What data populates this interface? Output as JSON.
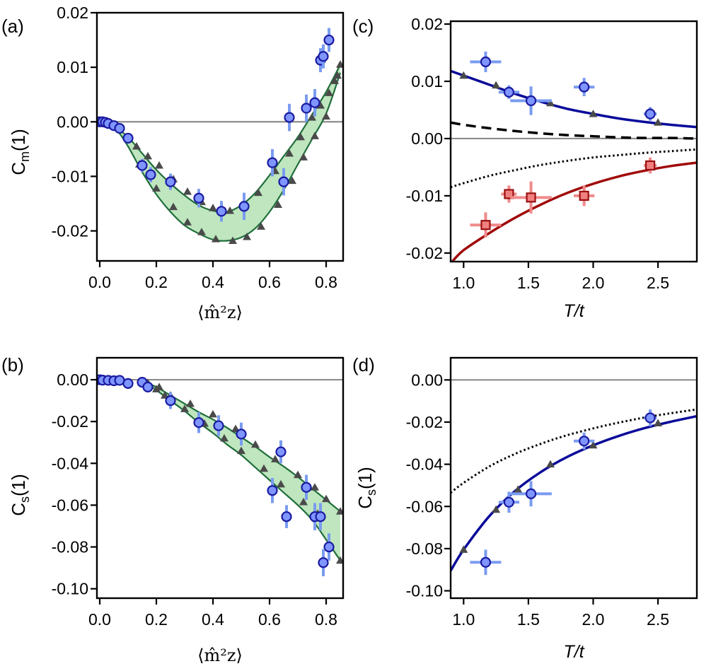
{
  "colors": {
    "frame": "#000000",
    "zero_line": "#8c8c8c",
    "band_fill": "#bfe6bf",
    "band_line": "#1f6e3a",
    "triangle": "#4a4a4a",
    "blue_point_fill": "#7f95ff",
    "blue_point_edge": "#1a1aa0",
    "blue_error": "#7a9cf0",
    "red_point_fill": "#f08080",
    "red_point_edge": "#9a1010",
    "red_error": "#f08a8a",
    "blue_curve": "#0a0a9a",
    "red_curve": "#a00a0a",
    "dashed_curve": "#000000",
    "dotted_curve": "#000000"
  },
  "chart_data": [
    {
      "id": "a",
      "type": "scatter",
      "panel_label": "(a)",
      "ylabel_main": "C",
      "ylabel_sub": "m",
      "ylabel_tail": "(1)",
      "xlabel_math": "⟨m̂²z⟩",
      "xlim": [
        -0.01,
        0.86
      ],
      "ylim": [
        -0.0255,
        0.02
      ],
      "xticks": [
        0.0,
        0.2,
        0.4,
        0.6,
        0.8
      ],
      "xtick_labels": [
        "0.0",
        "0.2",
        "0.4",
        "0.6",
        "0.8"
      ],
      "yticks": [
        0.02,
        0.01,
        0.0,
        -0.01,
        -0.02
      ],
      "ytick_labels": [
        "0.02",
        "0.01",
        "0.00",
        "-0.01",
        "-0.02"
      ],
      "band_upper": [
        [
          0.0,
          0.0
        ],
        [
          0.03,
          -0.0005
        ],
        [
          0.06,
          -0.0012
        ],
        [
          0.1,
          -0.0028
        ],
        [
          0.15,
          -0.0058
        ],
        [
          0.2,
          -0.0088
        ],
        [
          0.25,
          -0.0113
        ],
        [
          0.3,
          -0.0135
        ],
        [
          0.35,
          -0.0153
        ],
        [
          0.4,
          -0.0163
        ],
        [
          0.45,
          -0.0165
        ],
        [
          0.5,
          -0.0153
        ],
        [
          0.55,
          -0.013
        ],
        [
          0.6,
          -0.0098
        ],
        [
          0.65,
          -0.0063
        ],
        [
          0.7,
          -0.0028
        ],
        [
          0.75,
          0.0013
        ],
        [
          0.8,
          0.0055
        ],
        [
          0.85,
          0.0105
        ]
      ],
      "band_lower": [
        [
          0.0,
          0.0
        ],
        [
          0.03,
          -0.0006
        ],
        [
          0.06,
          -0.0015
        ],
        [
          0.1,
          -0.0045
        ],
        [
          0.15,
          -0.0092
        ],
        [
          0.2,
          -0.0133
        ],
        [
          0.25,
          -0.0165
        ],
        [
          0.3,
          -0.019
        ],
        [
          0.35,
          -0.0205
        ],
        [
          0.4,
          -0.0216
        ],
        [
          0.45,
          -0.0218
        ],
        [
          0.5,
          -0.0212
        ],
        [
          0.55,
          -0.0195
        ],
        [
          0.6,
          -0.0165
        ],
        [
          0.65,
          -0.0125
        ],
        [
          0.7,
          -0.0078
        ],
        [
          0.75,
          -0.0032
        ],
        [
          0.8,
          0.0015
        ],
        [
          0.85,
          0.009
        ]
      ],
      "triangles": [
        [
          0.13,
          -0.0045
        ],
        [
          0.17,
          -0.0063
        ],
        [
          0.21,
          -0.008
        ],
        [
          0.26,
          -0.0105
        ],
        [
          0.31,
          -0.0128
        ],
        [
          0.36,
          -0.0147
        ],
        [
          0.4,
          -0.0158
        ],
        [
          0.46,
          -0.0163
        ],
        [
          0.56,
          -0.013
        ],
        [
          0.62,
          -0.009
        ],
        [
          0.67,
          -0.0058
        ],
        [
          0.71,
          -0.0028
        ],
        [
          0.75,
          0.0008
        ],
        [
          0.78,
          0.003
        ],
        [
          0.81,
          0.0053
        ],
        [
          0.83,
          0.0075
        ],
        [
          0.85,
          0.0105
        ],
        [
          0.14,
          -0.0078
        ],
        [
          0.2,
          -0.0122
        ],
        [
          0.26,
          -0.0156
        ],
        [
          0.31,
          -0.0184
        ],
        [
          0.36,
          -0.0202
        ],
        [
          0.41,
          -0.0215
        ],
        [
          0.47,
          -0.0218
        ],
        [
          0.52,
          -0.0211
        ],
        [
          0.57,
          -0.0192
        ],
        [
          0.63,
          -0.0152
        ],
        [
          0.68,
          -0.0108
        ],
        [
          0.72,
          -0.0065
        ],
        [
          0.76,
          -0.0026
        ],
        [
          0.8,
          0.001
        ],
        [
          0.84,
          0.0085
        ]
      ],
      "points": [
        [
          0.0,
          0.0,
          0.0004
        ],
        [
          0.01,
          0.0,
          0.0004
        ],
        [
          0.02,
          -0.0001,
          0.0004
        ],
        [
          0.03,
          -0.0003,
          0.0005
        ],
        [
          0.05,
          -0.0007,
          0.0005
        ],
        [
          0.07,
          -0.0012,
          0.0006
        ],
        [
          0.1,
          -0.003,
          0.0008
        ],
        [
          0.15,
          -0.008,
          0.0012
        ],
        [
          0.18,
          -0.0097,
          0.0014
        ],
        [
          0.25,
          -0.011,
          0.0015
        ],
        [
          0.35,
          -0.014,
          0.0017
        ],
        [
          0.43,
          -0.0164,
          0.0019
        ],
        [
          0.51,
          -0.0155,
          0.0025
        ],
        [
          0.61,
          -0.0075,
          0.0025
        ],
        [
          0.65,
          -0.011,
          0.0025
        ],
        [
          0.67,
          0.0008,
          0.0025
        ],
        [
          0.73,
          0.0025,
          0.0025
        ],
        [
          0.76,
          0.0035,
          0.0025
        ],
        [
          0.78,
          0.0113,
          0.0022
        ],
        [
          0.79,
          0.012,
          0.0022
        ],
        [
          0.81,
          0.015,
          0.0022
        ]
      ]
    },
    {
      "id": "b",
      "type": "scatter",
      "panel_label": "(b)",
      "ylabel_main": "C",
      "ylabel_sub": "s",
      "ylabel_tail": "(1)",
      "xlabel_math": "⟨m̂²z⟩",
      "xlim": [
        -0.01,
        0.86
      ],
      "ylim": [
        -0.1045,
        0.0105
      ],
      "xticks": [
        0.0,
        0.2,
        0.4,
        0.6,
        0.8
      ],
      "xtick_labels": [
        "0.0",
        "0.2",
        "0.4",
        "0.6",
        "0.8"
      ],
      "yticks": [
        0.0,
        -0.02,
        -0.04,
        -0.06,
        -0.08,
        -0.1
      ],
      "ytick_labels": [
        "0.00",
        "-0.02",
        "-0.04",
        "-0.06",
        "-0.08",
        "-0.10"
      ],
      "band_upper": [
        [
          0.15,
          -0.0005
        ],
        [
          0.2,
          -0.0035
        ],
        [
          0.25,
          -0.0075
        ],
        [
          0.3,
          -0.0115
        ],
        [
          0.35,
          -0.0155
        ],
        [
          0.4,
          -0.019
        ],
        [
          0.45,
          -0.023
        ],
        [
          0.5,
          -0.0275
        ],
        [
          0.55,
          -0.032
        ],
        [
          0.6,
          -0.037
        ],
        [
          0.65,
          -0.0415
        ],
        [
          0.7,
          -0.0465
        ],
        [
          0.75,
          -0.052
        ],
        [
          0.8,
          -0.0575
        ],
        [
          0.85,
          -0.063
        ]
      ],
      "band_lower": [
        [
          0.15,
          -0.0005
        ],
        [
          0.2,
          -0.005
        ],
        [
          0.25,
          -0.01
        ],
        [
          0.3,
          -0.015
        ],
        [
          0.35,
          -0.0205
        ],
        [
          0.4,
          -0.0255
        ],
        [
          0.45,
          -0.031
        ],
        [
          0.5,
          -0.036
        ],
        [
          0.55,
          -0.042
        ],
        [
          0.6,
          -0.048
        ],
        [
          0.65,
          -0.054
        ],
        [
          0.7,
          -0.06
        ],
        [
          0.75,
          -0.067
        ],
        [
          0.8,
          -0.0765
        ],
        [
          0.85,
          -0.0865
        ]
      ],
      "triangles": [
        [
          0.17,
          -0.0015
        ],
        [
          0.21,
          -0.0035
        ],
        [
          0.25,
          -0.0075
        ],
        [
          0.32,
          -0.0115
        ],
        [
          0.4,
          -0.0165
        ],
        [
          0.48,
          -0.0235
        ],
        [
          0.55,
          -0.031
        ],
        [
          0.62,
          -0.038
        ],
        [
          0.7,
          -0.0455
        ],
        [
          0.76,
          -0.0515
        ],
        [
          0.8,
          -0.057
        ],
        [
          0.85,
          -0.063
        ],
        [
          0.2,
          -0.0045
        ],
        [
          0.23,
          -0.0075
        ],
        [
          0.3,
          -0.014
        ],
        [
          0.37,
          -0.021
        ],
        [
          0.44,
          -0.028
        ],
        [
          0.5,
          -0.034
        ],
        [
          0.58,
          -0.0425
        ],
        [
          0.64,
          -0.05
        ],
        [
          0.72,
          -0.0585
        ],
        [
          0.77,
          -0.064
        ],
        [
          0.81,
          -0.078
        ],
        [
          0.85,
          -0.0865
        ]
      ],
      "points": [
        [
          0.0,
          0.0,
          0.0015
        ],
        [
          0.01,
          -0.0002,
          0.0015
        ],
        [
          0.03,
          -0.0003,
          0.0015
        ],
        [
          0.05,
          -0.0005,
          0.0015
        ],
        [
          0.07,
          -0.0003,
          0.0015
        ],
        [
          0.1,
          -0.0018,
          0.002
        ],
        [
          0.15,
          -0.0012,
          0.002
        ],
        [
          0.17,
          -0.0035,
          0.0025
        ],
        [
          0.25,
          -0.01,
          0.004
        ],
        [
          0.35,
          -0.0205,
          0.005
        ],
        [
          0.42,
          -0.022,
          0.005
        ],
        [
          0.5,
          -0.026,
          0.0055
        ],
        [
          0.61,
          -0.053,
          0.006
        ],
        [
          0.64,
          -0.0345,
          0.0055
        ],
        [
          0.66,
          -0.0655,
          0.0055
        ],
        [
          0.73,
          -0.0515,
          0.006
        ],
        [
          0.76,
          -0.0655,
          0.0065
        ],
        [
          0.78,
          -0.0655,
          0.0065
        ],
        [
          0.81,
          -0.08,
          0.0065
        ],
        [
          0.79,
          -0.0875,
          0.0065
        ]
      ]
    },
    {
      "id": "c",
      "type": "scatter",
      "panel_label": "(c)",
      "xlabel": "T/t",
      "xlim": [
        0.9,
        2.8
      ],
      "ylim": [
        -0.0215,
        0.0205
      ],
      "xticks": [
        1.0,
        1.5,
        2.0,
        2.5
      ],
      "xtick_labels": [
        "1.0",
        "1.5",
        "2.0",
        "2.5"
      ],
      "yticks": [
        0.02,
        0.01,
        0.0,
        -0.01,
        -0.02
      ],
      "ytick_labels": [
        "0.02",
        "0.01",
        "0.00",
        "-0.01",
        "-0.02"
      ],
      "blue_curve": [
        [
          0.9,
          0.0118
        ],
        [
          1.0,
          0.011
        ],
        [
          1.2,
          0.0094
        ],
        [
          1.4,
          0.0078
        ],
        [
          1.6,
          0.0064
        ],
        [
          1.8,
          0.0052
        ],
        [
          2.0,
          0.0043
        ],
        [
          2.2,
          0.0035
        ],
        [
          2.4,
          0.0029
        ],
        [
          2.6,
          0.0024
        ],
        [
          2.8,
          0.002
        ]
      ],
      "dashed_curve": [
        [
          0.9,
          0.0028
        ],
        [
          1.0,
          0.0024
        ],
        [
          1.2,
          0.0018
        ],
        [
          1.4,
          0.0013
        ],
        [
          1.6,
          0.0009
        ],
        [
          1.8,
          0.0006
        ],
        [
          2.0,
          0.0004
        ],
        [
          2.2,
          0.0002
        ],
        [
          2.4,
          0.0001
        ],
        [
          2.6,
          0.0001
        ],
        [
          2.8,
          0.0
        ]
      ],
      "dotted_curve": [
        [
          0.9,
          -0.0085
        ],
        [
          1.0,
          -0.0078
        ],
        [
          1.2,
          -0.0065
        ],
        [
          1.4,
          -0.0055
        ],
        [
          1.6,
          -0.0046
        ],
        [
          1.8,
          -0.0039
        ],
        [
          2.0,
          -0.0033
        ],
        [
          2.2,
          -0.0029
        ],
        [
          2.4,
          -0.0025
        ],
        [
          2.6,
          -0.0022
        ],
        [
          2.8,
          -0.0019
        ]
      ],
      "red_curve": [
        [
          0.9,
          -0.0218
        ],
        [
          1.0,
          -0.0195
        ],
        [
          1.2,
          -0.0165
        ],
        [
          1.4,
          -0.0138
        ],
        [
          1.6,
          -0.0115
        ],
        [
          1.8,
          -0.0095
        ],
        [
          2.0,
          -0.0079
        ],
        [
          2.2,
          -0.0066
        ],
        [
          2.4,
          -0.0056
        ],
        [
          2.6,
          -0.0048
        ],
        [
          2.8,
          -0.0042
        ]
      ],
      "triangles": [
        [
          1.0,
          0.011
        ],
        [
          1.25,
          0.0093
        ],
        [
          1.67,
          0.0062
        ],
        [
          2.0,
          0.0043
        ],
        [
          2.5,
          0.0028
        ]
      ],
      "blue_points": [
        [
          1.17,
          0.0134,
          0.12,
          0.0018
        ],
        [
          1.35,
          0.0081,
          0.08,
          0.0012
        ],
        [
          1.52,
          0.0066,
          0.16,
          0.0025
        ],
        [
          1.93,
          0.009,
          0.08,
          0.0016
        ],
        [
          2.44,
          0.0043,
          0.05,
          0.0012
        ]
      ],
      "red_points": [
        [
          1.17,
          -0.0151,
          0.12,
          0.0022
        ],
        [
          1.35,
          -0.0097,
          0.06,
          0.0015
        ],
        [
          1.52,
          -0.0103,
          0.16,
          0.0028
        ],
        [
          1.93,
          -0.01,
          0.08,
          0.0018
        ],
        [
          2.44,
          -0.0047,
          0.05,
          0.0014
        ]
      ]
    },
    {
      "id": "d",
      "type": "scatter",
      "panel_label": "(d)",
      "ylabel_main": "C",
      "ylabel_sub": "s",
      "ylabel_tail": "(1)",
      "xlabel": "T/t",
      "xlim": [
        0.9,
        2.8
      ],
      "ylim": [
        -0.1035,
        0.0105
      ],
      "xticks": [
        1.0,
        1.5,
        2.0,
        2.5
      ],
      "xtick_labels": [
        "1.0",
        "1.5",
        "2.0",
        "2.5"
      ],
      "yticks": [
        0.0,
        -0.02,
        -0.04,
        -0.06,
        -0.08,
        -0.1
      ],
      "ytick_labels": [
        "0.00",
        "-0.02",
        "-0.04",
        "-0.06",
        "-0.08",
        "-0.10"
      ],
      "blue_curve": [
        [
          0.9,
          -0.0905
        ],
        [
          1.0,
          -0.0805
        ],
        [
          1.2,
          -0.0645
        ],
        [
          1.4,
          -0.0525
        ],
        [
          1.6,
          -0.0435
        ],
        [
          1.8,
          -0.0365
        ],
        [
          2.0,
          -0.031
        ],
        [
          2.2,
          -0.0265
        ],
        [
          2.4,
          -0.0228
        ],
        [
          2.6,
          -0.0198
        ],
        [
          2.8,
          -0.0172
        ]
      ],
      "dotted_curve": [
        [
          0.9,
          -0.0535
        ],
        [
          1.0,
          -0.0488
        ],
        [
          1.2,
          -0.041
        ],
        [
          1.4,
          -0.035
        ],
        [
          1.6,
          -0.0302
        ],
        [
          1.8,
          -0.0262
        ],
        [
          2.0,
          -0.023
        ],
        [
          2.2,
          -0.0202
        ],
        [
          2.4,
          -0.0178
        ],
        [
          2.6,
          -0.0158
        ],
        [
          2.8,
          -0.014
        ]
      ],
      "triangles": [
        [
          1.0,
          -0.0805
        ],
        [
          1.25,
          -0.0615
        ],
        [
          1.42,
          -0.052
        ],
        [
          1.67,
          -0.04
        ],
        [
          2.0,
          -0.031
        ],
        [
          2.5,
          -0.0205
        ]
      ],
      "blue_points": [
        [
          1.17,
          -0.0865,
          0.12,
          0.006
        ],
        [
          1.35,
          -0.058,
          0.08,
          0.005
        ],
        [
          1.52,
          -0.054,
          0.16,
          0.006
        ],
        [
          1.93,
          -0.029,
          0.08,
          0.004
        ],
        [
          2.44,
          -0.018,
          0.05,
          0.004
        ]
      ]
    }
  ]
}
